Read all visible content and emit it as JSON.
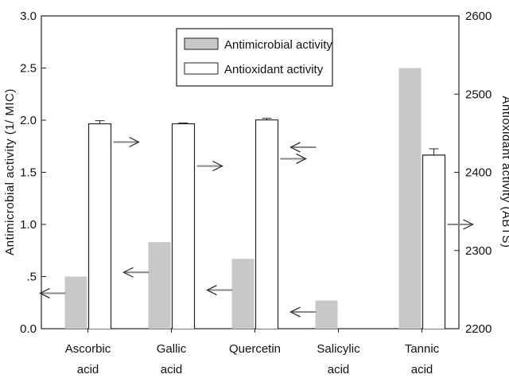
{
  "chart_data": {
    "type": "bar",
    "categories": [
      [
        "Ascorbic",
        "acid"
      ],
      [
        "Gallic",
        "acid"
      ],
      [
        "Quercetin"
      ],
      [
        "Salicylic",
        "acid"
      ],
      [
        "Tannic",
        "acid"
      ]
    ],
    "left_axis": {
      "label": "Antimicrobial activity (1/ MIC)",
      "ylim": [
        0,
        3.0
      ],
      "ticks": [
        "0.0",
        ".5",
        "1.0",
        "1.5",
        "2.0",
        "2.5",
        "3.0"
      ],
      "tick_values": [
        0,
        0.5,
        1.0,
        1.5,
        2.0,
        2.5,
        3.0
      ]
    },
    "right_axis": {
      "label": "Antioxidant activity (ABTS)",
      "ylim": [
        2200,
        2600
      ],
      "ticks": [
        "2200",
        "2300",
        "2400",
        "2500",
        "2600"
      ],
      "tick_values": [
        2200,
        2300,
        2400,
        2500,
        2600
      ]
    },
    "series": [
      {
        "name": "Antimicrobial activity",
        "axis": "left",
        "color": "#c8c8c8",
        "values": [
          0.5,
          0.83,
          0.67,
          0.27,
          2.5
        ]
      },
      {
        "name": "Antioxidant activity",
        "axis": "right",
        "color": "#ffffff",
        "values": [
          2462,
          2462,
          2467,
          2200,
          2422
        ],
        "errors": [
          4,
          1,
          2,
          0,
          8
        ]
      }
    ],
    "arrows": [
      {
        "axis": "left",
        "y": 0.34,
        "dir": "left",
        "category": 0
      },
      {
        "axis": "left",
        "y": 1.79,
        "dir": "right",
        "category": 0
      },
      {
        "axis": "left",
        "y": 0.54,
        "dir": "left",
        "category": 1
      },
      {
        "axis": "left",
        "y": 1.56,
        "dir": "right",
        "category": 1
      },
      {
        "axis": "left",
        "y": 0.37,
        "dir": "left",
        "category": 2
      },
      {
        "axis": "left",
        "y": 1.63,
        "dir": "right",
        "category": 2
      },
      {
        "axis": "left",
        "y": 0.16,
        "dir": "left",
        "category": 3
      },
      {
        "axis": "left",
        "y": 1.74,
        "dir": "left",
        "category": 3
      },
      {
        "axis": "left",
        "y": 1.0,
        "dir": "right",
        "category": 4
      }
    ],
    "legend_position": "top-center",
    "grid": false
  }
}
